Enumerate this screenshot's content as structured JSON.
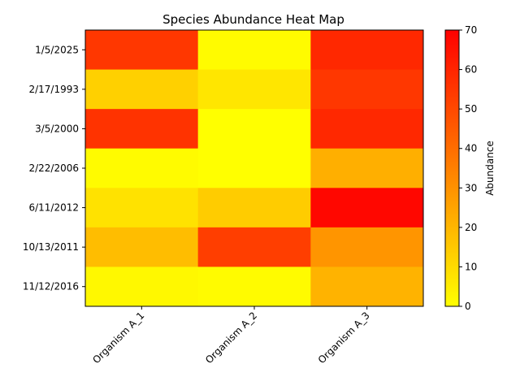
{
  "chart_data": {
    "type": "heatmap",
    "title": "Species Abundance Heat Map",
    "x_categories": [
      "Organism A_1",
      "Organism A_2",
      "Organism A_3"
    ],
    "y_categories": [
      "1/5/2025",
      "2/17/1993",
      "3/5/2000",
      "2/22/2006",
      "6/11/2012",
      "10/13/2011",
      "11/12/2016"
    ],
    "values": [
      [
        55,
        1,
        59
      ],
      [
        13,
        7,
        55
      ],
      [
        56,
        0,
        59
      ],
      [
        1,
        0,
        22
      ],
      [
        8,
        14,
        68
      ],
      [
        18,
        53,
        29
      ],
      [
        2,
        1,
        21
      ]
    ],
    "colorbar": {
      "label": "Abundance",
      "range": [
        0,
        70
      ],
      "ticks": [
        "0",
        "10",
        "20",
        "30",
        "40",
        "50",
        "60",
        "70"
      ],
      "colormap": [
        "#ffff00",
        "#ff0000"
      ]
    }
  }
}
